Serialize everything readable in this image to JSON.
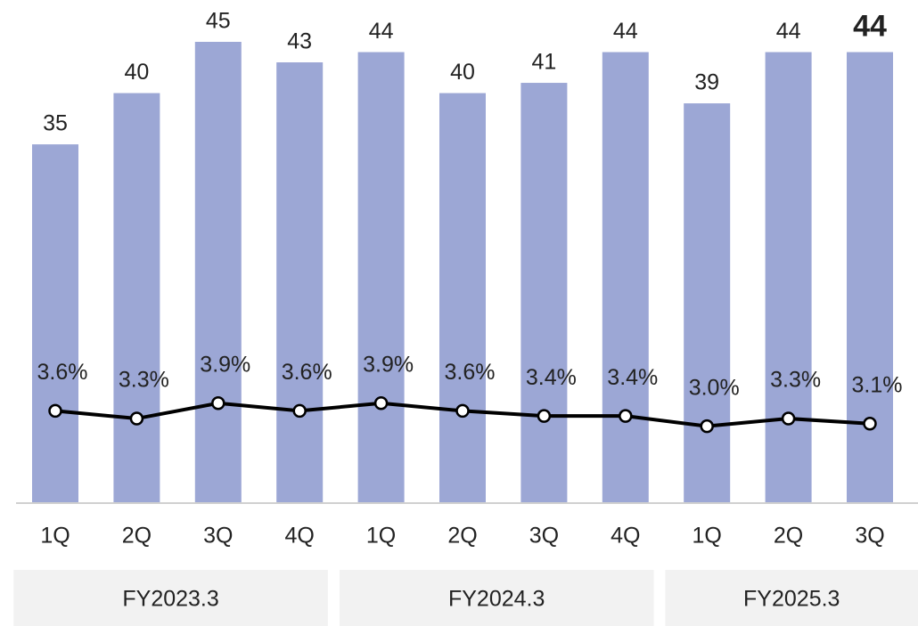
{
  "chart_data": {
    "type": "bar",
    "categories": [
      "1Q",
      "2Q",
      "3Q",
      "4Q",
      "1Q",
      "2Q",
      "3Q",
      "4Q",
      "1Q",
      "2Q",
      "3Q"
    ],
    "groups": [
      {
        "name": "FY2023.3",
        "size": 4
      },
      {
        "name": "FY2024.3",
        "size": 4
      },
      {
        "name": "FY2025.3",
        "size": 3
      }
    ],
    "series": [
      {
        "type": "bar",
        "color": "#9ca7d5",
        "values": [
          35,
          40,
          45,
          43,
          44,
          40,
          41,
          44,
          39,
          44,
          44
        ],
        "bold_last_label": true
      },
      {
        "type": "line",
        "axis": "y2",
        "color": "#000000",
        "values": [
          3.6,
          3.3,
          3.9,
          3.6,
          3.9,
          3.6,
          3.4,
          3.4,
          3.0,
          3.3,
          3.1
        ],
        "value_labels": [
          "3.6%",
          "3.3%",
          "3.9%",
          "3.6%",
          "3.9%",
          "3.6%",
          "3.4%",
          "3.4%",
          "3.0%",
          "3.3%",
          "3.1%"
        ]
      }
    ],
    "ylim": [
      0,
      45
    ],
    "y2lim": [
      0,
      18
    ]
  }
}
